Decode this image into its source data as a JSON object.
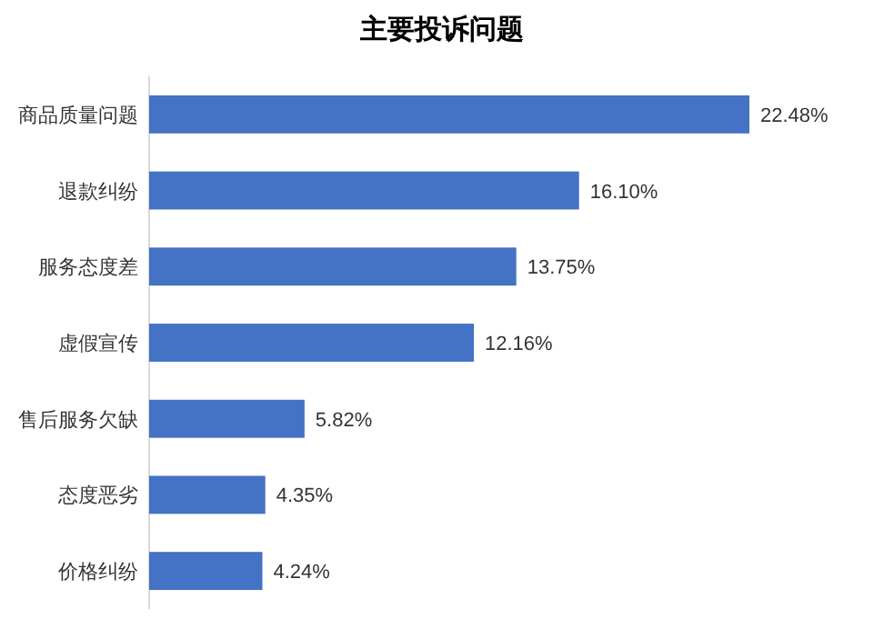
{
  "chart_data": {
    "type": "bar",
    "orientation": "horizontal",
    "title": "主要投诉问题",
    "categories": [
      "商品质量问题",
      "退款纠纷",
      "服务态度差",
      "虚假宣传",
      "售后服务欠缺",
      "态度恶劣",
      "价格纠纷"
    ],
    "values": [
      22.48,
      16.1,
      13.75,
      12.16,
      5.82,
      4.35,
      4.24
    ],
    "value_labels": [
      "22.48%",
      "16.10%",
      "13.75%",
      "12.16%",
      "5.82%",
      "4.35%",
      "4.24%"
    ],
    "color": "#4472c4"
  }
}
